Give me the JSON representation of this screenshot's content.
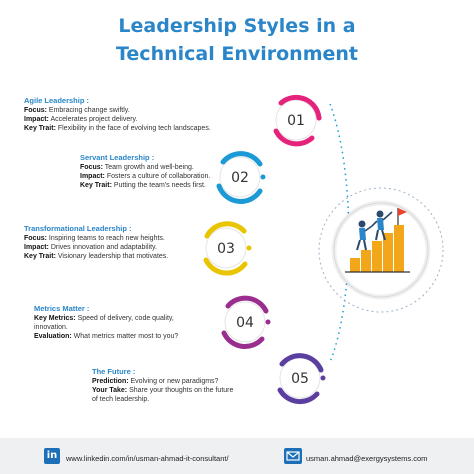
{
  "title_line1": "Leadership Styles in a",
  "title_line2": "Technical Environment",
  "colors": {
    "title": "#2a86c8",
    "c1": "#e6237c",
    "c2": "#1c9ad6",
    "c3": "#e9c400",
    "c4": "#9a2e8e",
    "c5": "#5a3ea0"
  },
  "items": [
    {
      "number": "01",
      "heading": "Agile Leadership :",
      "heading_color": "#2a86c8",
      "l1_label": "Focus:",
      "l1_text": " Embracing change swiftly.",
      "l2_label": "Impact:",
      "l2_text": " Accelerates project delivery.",
      "l3_label": "Key Trait:",
      "l3_text": " Flexibility in the face of evolving tech landscapes."
    },
    {
      "number": "02",
      "heading": "Servant Leadership :",
      "heading_color": "#2a86c8",
      "l1_label": "Focus:",
      "l1_text": " Team growth and well-being.",
      "l2_label": "Impact:",
      "l2_text": " Fosters a culture of collaboration.",
      "l3_label": "Key Trait:",
      "l3_text": " Putting the team's needs first."
    },
    {
      "number": "03",
      "heading": "Transformational Leadership :",
      "heading_color": "#2a86c8",
      "l1_label": "Focus:",
      "l1_text": " Inspiring teams to reach new heights.",
      "l2_label": "Impact:",
      "l2_text": " Drives innovation and adaptability.",
      "l3_label": "Key Trait:",
      "l3_text": " Visionary leadership that motivates."
    },
    {
      "number": "04",
      "heading": "Metrics Matter :",
      "heading_color": "#2a86c8",
      "l1_label": "Key Metrics:",
      "l1_text": " Speed of delivery, code quality,",
      "l1b_text": "innovation.",
      "l2_label": "Evaluation:",
      "l2_text": " What metrics matter most to you?"
    },
    {
      "number": "05",
      "heading": "The Future :",
      "heading_color": "#2a86c8",
      "l1_label": "Prediction:",
      "l1_text": " Evolving or new paradigms?",
      "l2_label": "Your Take:",
      "l2_text": " Share your thoughts on the future",
      "l2b_text": "of tech leadership."
    }
  ],
  "footer": {
    "linkedin_icon": "linkedin-icon",
    "linkedin_url": "www.linkedin.com/in/usman-ahmad-it-consultant/",
    "email_icon": "mail-icon",
    "email": "usman.ahmad@exergysystems.com"
  },
  "center_icon": "team-climbing-steps-icon"
}
